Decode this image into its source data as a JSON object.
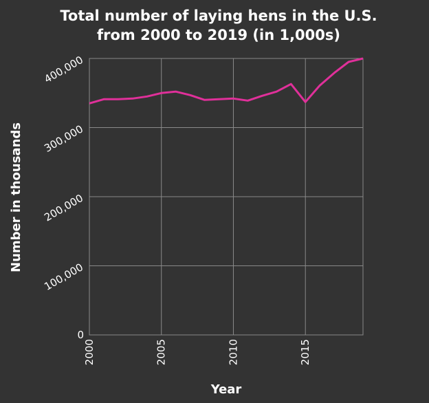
{
  "chart_data": {
    "type": "line",
    "title_lines": [
      "Total number of laying hens in the U.S.",
      "from 2000 to 2019 (in 1,000s)"
    ],
    "xlabel": "Year",
    "ylabel": "Number in thousands",
    "xlim": [
      2000,
      2019
    ],
    "ylim": [
      0,
      400000
    ],
    "xticks": [
      2000,
      2005,
      2010,
      2015
    ],
    "yticks": [
      0,
      100000,
      200000,
      300000,
      400000
    ],
    "ytick_labels": [
      "0",
      "100,000",
      "200,000",
      "300,000",
      "400,000"
    ],
    "grid": true,
    "x": [
      2000,
      2001,
      2002,
      2003,
      2004,
      2005,
      2006,
      2007,
      2008,
      2009,
      2010,
      2011,
      2012,
      2013,
      2014,
      2015,
      2016,
      2017,
      2018,
      2019
    ],
    "series": [
      {
        "values": [
          335000,
          341000,
          341000,
          342000,
          345000,
          350000,
          352000,
          347000,
          340000,
          341000,
          342000,
          339000,
          346000,
          352000,
          363000,
          337000,
          361000,
          379000,
          395000,
          400000
        ],
        "color": "#e0309a"
      }
    ],
    "colors": {
      "background": "#333333",
      "grid": "#8a8a8a",
      "text": "#ffffff"
    }
  }
}
